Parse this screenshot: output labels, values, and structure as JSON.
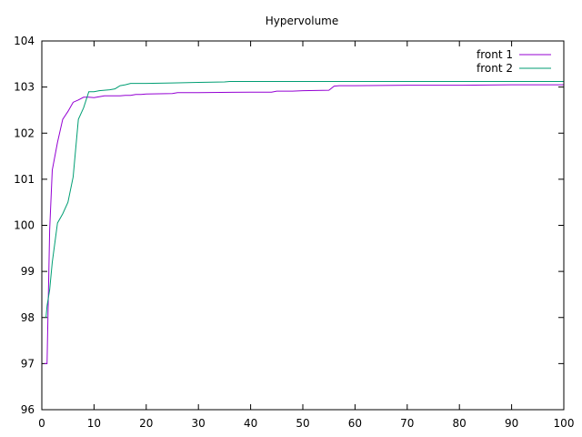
{
  "chart_data": {
    "type": "line",
    "title": "Hypervolume",
    "xlabel": "",
    "ylabel": "",
    "xlim": [
      0,
      100
    ],
    "ylim": [
      96,
      104
    ],
    "xticks": [
      0,
      10,
      20,
      30,
      40,
      50,
      60,
      70,
      80,
      90,
      100
    ],
    "yticks": [
      96,
      97,
      98,
      99,
      100,
      101,
      102,
      103,
      104
    ],
    "grid": false,
    "legend_position": "top-right",
    "series": [
      {
        "name": "front 1",
        "color": "#9400d3",
        "x": [
          0.5,
          1,
          1.5,
          2,
          3,
          4,
          5,
          6,
          7,
          8,
          9,
          10,
          11,
          12,
          13,
          14,
          15,
          16,
          17,
          18,
          19,
          20,
          25,
          26,
          30,
          40,
          44,
          45,
          47,
          48,
          50,
          55,
          56,
          57,
          60,
          70,
          80,
          90,
          100
        ],
        "y": [
          97.0,
          97.0,
          99.9,
          101.2,
          101.8,
          102.3,
          102.47,
          102.67,
          102.72,
          102.78,
          102.78,
          102.77,
          102.79,
          102.81,
          102.81,
          102.81,
          102.81,
          102.82,
          102.82,
          102.84,
          102.84,
          102.85,
          102.86,
          102.88,
          102.88,
          102.89,
          102.89,
          102.91,
          102.91,
          102.91,
          102.92,
          102.93,
          103.02,
          103.03,
          103.03,
          103.04,
          103.04,
          103.05,
          103.05
        ]
      },
      {
        "name": "front 2",
        "color": "#009e73",
        "x": [
          0.8,
          1,
          1.5,
          2,
          3,
          4,
          5,
          6,
          7,
          8,
          9,
          10,
          11,
          12,
          13,
          14,
          15,
          16,
          17,
          18,
          20,
          25,
          30,
          35,
          36,
          40,
          50,
          60,
          70,
          80,
          90,
          100
        ],
        "y": [
          98.0,
          98.25,
          98.6,
          99.2,
          100.05,
          100.25,
          100.5,
          101.05,
          102.3,
          102.55,
          102.9,
          102.9,
          102.92,
          102.93,
          102.94,
          102.96,
          103.03,
          103.05,
          103.08,
          103.08,
          103.08,
          103.09,
          103.1,
          103.11,
          103.12,
          103.12,
          103.12,
          103.12,
          103.12,
          103.12,
          103.12,
          103.12
        ]
      }
    ]
  }
}
